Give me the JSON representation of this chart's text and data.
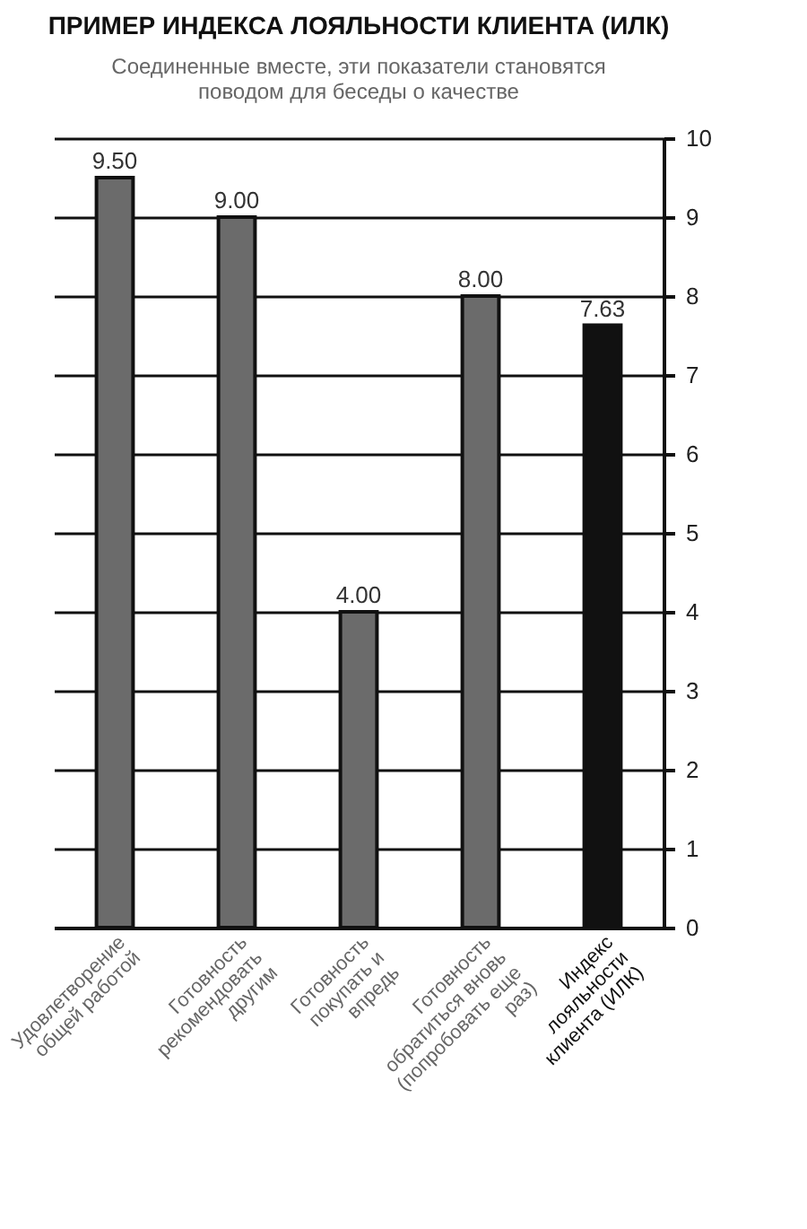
{
  "chart_data": {
    "type": "bar",
    "title": "ПРИМЕР ИНДЕКСА ЛОЯЛЬНОСТИ КЛИЕНТА (ИЛК)",
    "subtitle": "Соединенные вместе, эти показатели становятся поводом для беседы о качестве",
    "categories": [
      "Удовлетворение общей работой",
      "Готовность рекомендовать другим",
      "Готовность покупать и впредь",
      "Готовность обратиться вновь (попробовать еще раз)",
      "Индекс лояльности клиента (ИЛК)"
    ],
    "values": [
      9.5,
      9.0,
      4.0,
      8.0,
      7.63
    ],
    "colors": [
      "#6b6b6b",
      "#6b6b6b",
      "#6b6b6b",
      "#6b6b6b",
      "#111111"
    ],
    "value_labels": [
      "9.50",
      "9.00",
      "4.00",
      "8.00",
      "7.63"
    ],
    "ylim": [
      0,
      10
    ],
    "yticks": [
      0,
      1,
      2,
      3,
      4,
      5,
      6,
      7,
      8,
      9,
      10
    ],
    "grid": true
  }
}
